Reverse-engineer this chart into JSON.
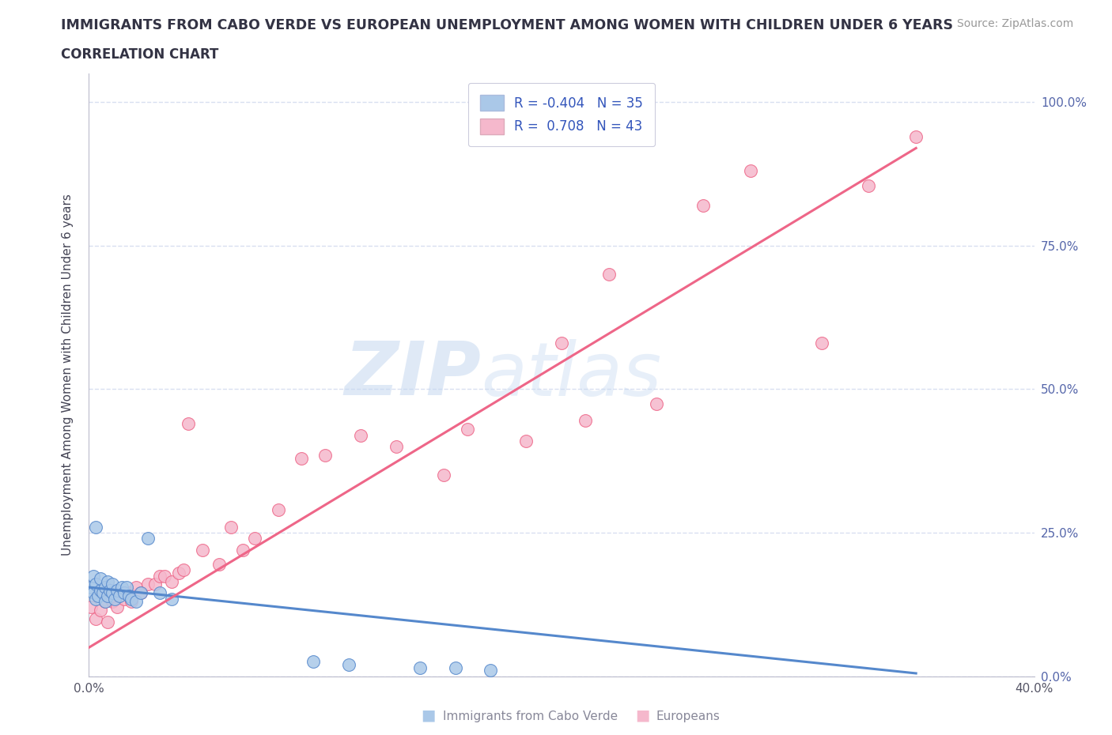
{
  "title": "IMMIGRANTS FROM CABO VERDE VS EUROPEAN UNEMPLOYMENT AMONG WOMEN WITH CHILDREN UNDER 6 YEARS",
  "subtitle": "CORRELATION CHART",
  "source": "Source: ZipAtlas.com",
  "xlabel_bottom_blue": "Immigrants from Cabo Verde",
  "xlabel_bottom_pink": "Europeans",
  "ylabel": "Unemployment Among Women with Children Under 6 years",
  "xlim": [
    0.0,
    0.4
  ],
  "ylim": [
    0.0,
    1.05
  ],
  "color_blue": "#aac8e8",
  "color_pink": "#f5b8cc",
  "line_blue": "#5588cc",
  "line_pink": "#ee6688",
  "watermark_zip": "ZIP",
  "watermark_atlas": "atlas",
  "background": "#ffffff",
  "grid_color": "#d8dff0",
  "blue_x": [
    0.001,
    0.002,
    0.002,
    0.003,
    0.003,
    0.004,
    0.005,
    0.005,
    0.006,
    0.007,
    0.007,
    0.008,
    0.008,
    0.009,
    0.01,
    0.01,
    0.011,
    0.012,
    0.013,
    0.014,
    0.015,
    0.016,
    0.017,
    0.018,
    0.02,
    0.022,
    0.025,
    0.03,
    0.035,
    0.003,
    0.095,
    0.11,
    0.14,
    0.155,
    0.17
  ],
  "blue_y": [
    0.155,
    0.175,
    0.145,
    0.135,
    0.16,
    0.14,
    0.15,
    0.17,
    0.145,
    0.155,
    0.13,
    0.14,
    0.165,
    0.15,
    0.145,
    0.16,
    0.135,
    0.15,
    0.14,
    0.155,
    0.145,
    0.155,
    0.14,
    0.135,
    0.13,
    0.145,
    0.24,
    0.145,
    0.135,
    0.26,
    0.025,
    0.02,
    0.015,
    0.015,
    0.01
  ],
  "pink_x": [
    0.001,
    0.003,
    0.005,
    0.007,
    0.008,
    0.01,
    0.012,
    0.013,
    0.015,
    0.017,
    0.018,
    0.02,
    0.022,
    0.025,
    0.028,
    0.03,
    0.032,
    0.035,
    0.038,
    0.04,
    0.042,
    0.048,
    0.055,
    0.06,
    0.065,
    0.07,
    0.08,
    0.09,
    0.1,
    0.115,
    0.13,
    0.15,
    0.16,
    0.185,
    0.2,
    0.21,
    0.22,
    0.24,
    0.26,
    0.28,
    0.31,
    0.33,
    0.35
  ],
  "pink_y": [
    0.12,
    0.1,
    0.115,
    0.13,
    0.095,
    0.13,
    0.12,
    0.14,
    0.135,
    0.145,
    0.13,
    0.155,
    0.145,
    0.16,
    0.16,
    0.175,
    0.175,
    0.165,
    0.18,
    0.185,
    0.44,
    0.22,
    0.195,
    0.26,
    0.22,
    0.24,
    0.29,
    0.38,
    0.385,
    0.42,
    0.4,
    0.35,
    0.43,
    0.41,
    0.58,
    0.445,
    0.7,
    0.475,
    0.82,
    0.88,
    0.58,
    0.855,
    0.94
  ],
  "blue_line_x": [
    0.0,
    0.35
  ],
  "blue_line_y": [
    0.155,
    0.005
  ],
  "pink_line_x": [
    0.0,
    0.35
  ],
  "pink_line_y": [
    0.05,
    0.92
  ]
}
